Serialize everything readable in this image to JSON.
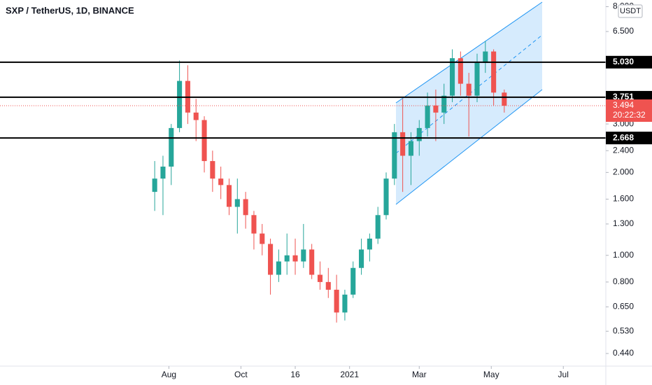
{
  "chart_data": {
    "type": "candlestick",
    "title": "SXP / TetherUS, 1D, BINANCE",
    "currency": "USDT",
    "log_scale": true,
    "ylim": [
      0.396,
      8.46
    ],
    "yticks": [
      {
        "value": 0.44,
        "label": "0.440"
      },
      {
        "value": 0.53,
        "label": "0.530"
      },
      {
        "value": 0.65,
        "label": "0.650"
      },
      {
        "value": 0.8,
        "label": "0.800"
      },
      {
        "value": 1,
        "label": "1.000"
      },
      {
        "value": 1.3,
        "label": "1.300"
      },
      {
        "value": 1.6,
        "label": "1.600"
      },
      {
        "value": 2,
        "label": "2.000"
      },
      {
        "value": 2.4,
        "label": "2.400"
      },
      {
        "value": 3,
        "label": "3.000"
      },
      {
        "value": 6.5,
        "label": "6.500"
      },
      {
        "value": 8,
        "label": "8.000"
      }
    ],
    "xlim": [
      -143,
      370
    ],
    "xticks": [
      {
        "value": 0,
        "label": "Aug"
      },
      {
        "value": 61,
        "label": "Oct"
      },
      {
        "value": 107,
        "label": "16"
      },
      {
        "value": 153,
        "label": "2021"
      },
      {
        "value": 212,
        "label": "Mar"
      },
      {
        "value": 273,
        "label": "May"
      },
      {
        "value": 334,
        "label": "Jul"
      }
    ],
    "up_color": "#26a69a",
    "down_color": "#ef5350",
    "x": [
      -12,
      -5,
      2,
      9,
      16,
      23,
      30,
      37,
      44,
      51,
      58,
      65,
      72,
      79,
      86,
      93,
      100,
      107,
      114,
      121,
      128,
      135,
      142,
      149,
      156,
      163,
      170,
      177,
      184,
      191,
      198,
      205,
      212,
      219,
      226,
      233,
      240,
      247,
      254,
      261,
      268,
      275,
      284
    ],
    "open": [
      1.7,
      1.9,
      2.1,
      2.9,
      4.3,
      3.3,
      3.1,
      2.2,
      1.9,
      1.8,
      1.5,
      1.6,
      1.4,
      1.2,
      1.1,
      0.85,
      0.95,
      1.0,
      0.95,
      1.05,
      0.85,
      0.8,
      0.75,
      0.62,
      0.72,
      0.9,
      1.05,
      1.15,
      1.4,
      1.9,
      2.8,
      2.3,
      2.6,
      2.9,
      3.5,
      3.3,
      3.8,
      5.2,
      4.2,
      3.8,
      5.0,
      5.5,
      3.9
    ],
    "high": [
      2.2,
      2.3,
      3.0,
      5.1,
      4.9,
      3.7,
      3.2,
      2.4,
      2.1,
      1.9,
      1.9,
      1.7,
      1.45,
      1.3,
      1.15,
      1.05,
      1.2,
      1.15,
      1.3,
      1.1,
      0.95,
      0.9,
      0.85,
      0.75,
      0.95,
      1.15,
      1.2,
      1.5,
      2.0,
      3.0,
      3.7,
      2.8,
      3.1,
      3.9,
      4.0,
      4.2,
      5.6,
      5.5,
      4.6,
      5.4,
      6.0,
      5.6,
      4.0
    ],
    "low": [
      1.45,
      1.4,
      1.8,
      2.8,
      3.0,
      2.6,
      2.0,
      1.7,
      1.6,
      1.4,
      1.2,
      1.25,
      1.05,
      1.0,
      0.72,
      0.8,
      0.85,
      0.85,
      0.9,
      0.82,
      0.75,
      0.7,
      0.57,
      0.58,
      0.7,
      0.85,
      0.95,
      1.1,
      1.35,
      1.8,
      1.7,
      1.8,
      2.3,
      2.7,
      2.6,
      3.0,
      3.6,
      3.8,
      2.7,
      3.6,
      4.6,
      3.5,
      3.3
    ],
    "close": [
      1.9,
      2.1,
      2.9,
      4.3,
      3.3,
      3.1,
      2.2,
      1.9,
      1.8,
      1.5,
      1.6,
      1.4,
      1.2,
      1.1,
      0.85,
      0.95,
      1.0,
      0.95,
      1.05,
      0.85,
      0.8,
      0.75,
      0.62,
      0.72,
      0.9,
      1.05,
      1.15,
      1.4,
      1.9,
      2.8,
      2.3,
      2.6,
      2.9,
      3.5,
      3.3,
      3.8,
      5.2,
      4.2,
      3.8,
      5.0,
      5.5,
      3.9,
      3.494
    ],
    "levels": [
      {
        "value": 5.03,
        "label": "5.030"
      },
      {
        "value": 3.751,
        "label": "3.751"
      },
      {
        "value": 2.668,
        "label": "2.668"
      }
    ],
    "last_price": {
      "value": 3.494,
      "label": "3.494",
      "countdown": "20:22:32"
    }
  }
}
